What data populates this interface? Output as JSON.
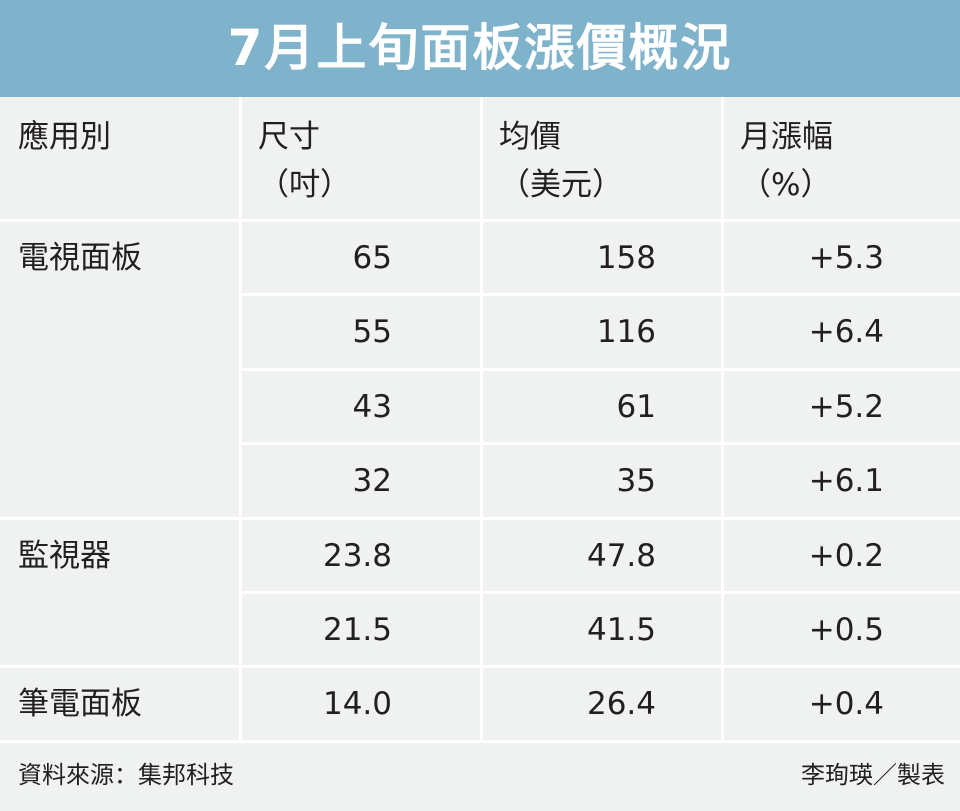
{
  "header": {
    "title": "7月上旬面板漲價概況"
  },
  "table": {
    "columns": [
      {
        "label": "應用別"
      },
      {
        "label": "尺寸",
        "unit": "（吋）"
      },
      {
        "label": "均價",
        "unit": "（美元）"
      },
      {
        "label": "月漲幅",
        "unit": "（%）"
      }
    ],
    "groups": [
      {
        "name": "電視面板",
        "rows": [
          [
            "65",
            "158",
            "+5.3"
          ],
          [
            "55",
            "116",
            "+6.4"
          ],
          [
            "43",
            "61",
            "+5.2"
          ],
          [
            "32",
            "35",
            "+6.1"
          ]
        ]
      },
      {
        "name": "監視器",
        "rows": [
          [
            "23.8",
            "47.8",
            "+0.2"
          ],
          [
            "21.5",
            "41.5",
            "+0.5"
          ]
        ]
      },
      {
        "name": "筆電面板",
        "rows": [
          [
            "14.0",
            "26.4",
            "+0.4"
          ]
        ]
      }
    ]
  },
  "footer": {
    "source": "資料來源：集邦科技",
    "credit": "李珣瑛／製表"
  }
}
